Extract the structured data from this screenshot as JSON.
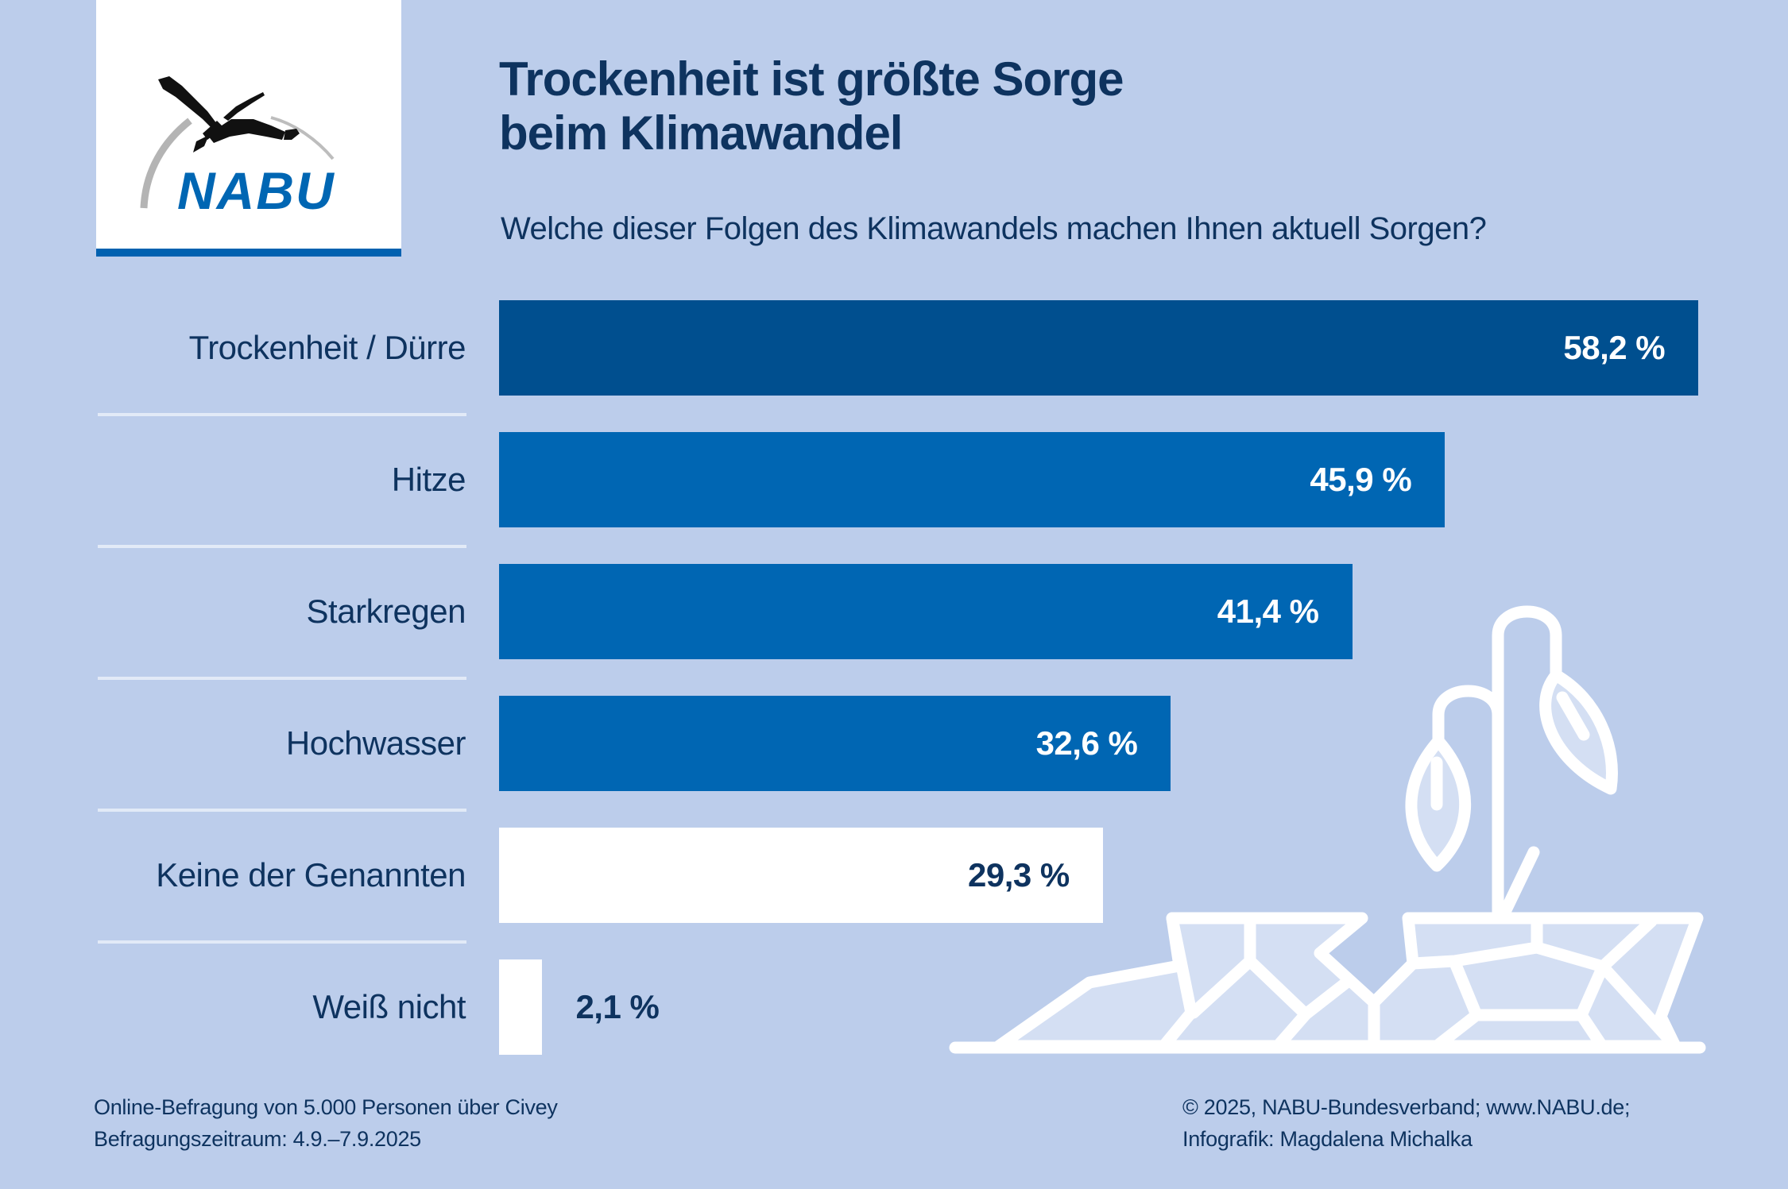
{
  "logo": {
    "text": "NABU",
    "brand_color": "#0066B3"
  },
  "header": {
    "title_line1": "Trockenheit ist größte Sorge",
    "title_line2": "beim Klimawandel",
    "question": "Welche dieser Folgen des Klimawandels machen Ihnen aktuell Sorgen?"
  },
  "colors": {
    "background": "#BCCDEB",
    "text": "#0E335F",
    "bar_top": "#004F8F",
    "bar_main": "#0066B3",
    "bar_other": "#FFFFFF",
    "divider": "#E2EAF7"
  },
  "chart_data": {
    "type": "bar",
    "orientation": "horizontal",
    "title": "Trockenheit ist größte Sorge beim Klimawandel",
    "subtitle": "Welche dieser Folgen des Klimawandels machen Ihnen aktuell Sorgen?",
    "unit": "%",
    "xlim": [
      0,
      100
    ],
    "grid": false,
    "categories": [
      "Trockenheit / Dürre",
      "Hitze",
      "Starkregen",
      "Hochwasser",
      "Keine der Genannten",
      "Weiß nicht"
    ],
    "values": [
      58.2,
      45.9,
      41.4,
      32.6,
      29.3,
      2.1
    ],
    "value_labels": [
      "58,2 %",
      "45,9 %",
      "41,4 %",
      "32,6 %",
      "29,3 %",
      "2,1 %"
    ],
    "bar_colors": [
      "#004F8F",
      "#0066B3",
      "#0066B3",
      "#0066B3",
      "#FFFFFF",
      "#FFFFFF"
    ],
    "label_colors": [
      "#FFFFFF",
      "#FFFFFF",
      "#FFFFFF",
      "#FFFFFF",
      "#0E335F",
      "#0E335F"
    ]
  },
  "footer": {
    "source_line1": "Online-Befragung von 5.000 Personen über Civey",
    "source_line2": "Befragungszeitraum: 4.9.–7.9.2025",
    "credit_line1": "© 2025, NABU-Bundesverband; www.NABU.de;",
    "credit_line2": "Infografik: Magdalena Michalka"
  }
}
